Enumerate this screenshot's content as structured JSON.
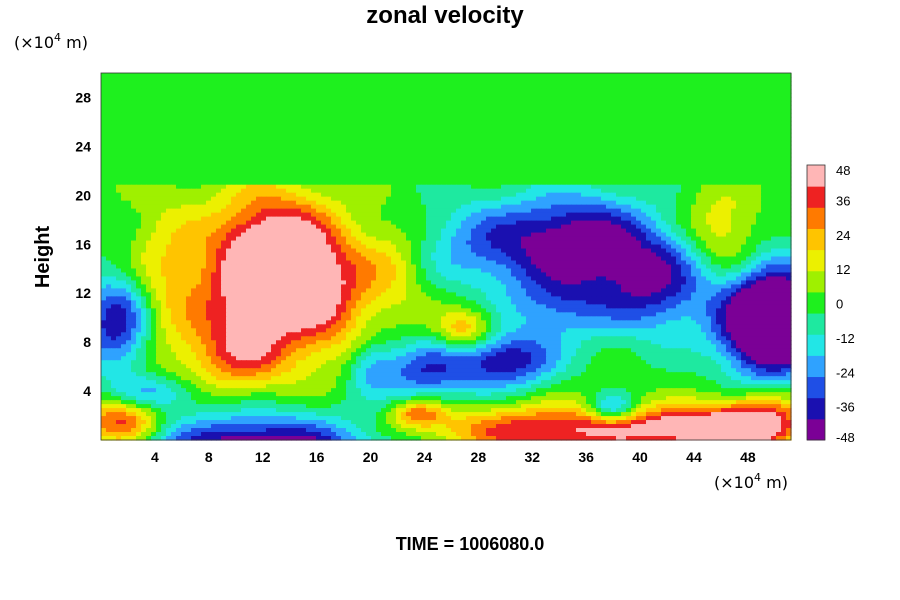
{
  "chart_data": {
    "type": "heatmap",
    "title": "zonal velocity",
    "ylabel": "Height",
    "x_unit_prefix": "(×10",
    "x_unit_exp": "4",
    "x_unit_suffix": " m)",
    "y_unit_prefix": "(×10",
    "y_unit_exp": "4",
    "y_unit_suffix": " m)",
    "x_ticks": [
      "4",
      "8",
      "12",
      "16",
      "20",
      "24",
      "28",
      "32",
      "36",
      "40",
      "44",
      "48"
    ],
    "y_ticks": [
      "4",
      "8",
      "12",
      "16",
      "20",
      "24",
      "28"
    ],
    "xlim": [
      0,
      51.2
    ],
    "ylim": [
      0,
      30
    ],
    "colorbar": {
      "ticks": [
        "48",
        "36",
        "24",
        "12",
        "0",
        "-12",
        "-24",
        "-36",
        "-48"
      ],
      "range": [
        -48,
        48
      ],
      "colors": [
        "#7b0096",
        "#1a10b0",
        "#1f4fe6",
        "#2fa2ff",
        "#22e6e6",
        "#1ee9a0",
        "#1ef01e",
        "#9ff000",
        "#ecf000",
        "#ffc400",
        "#ff7a00",
        "#ee2222",
        "#ffb6b6"
      ]
    },
    "field_blobs": [
      {
        "x": 12,
        "y": 13,
        "sx": 3.8,
        "sy": 4.6,
        "v": 48
      },
      {
        "x": 13.5,
        "y": 15,
        "sx": 2.5,
        "sy": 3.2,
        "v": 30
      },
      {
        "x": 10,
        "y": 7,
        "sx": 2.6,
        "sy": 2.2,
        "v": 22
      },
      {
        "x": 17,
        "y": 12,
        "sx": 2.0,
        "sy": 3.5,
        "v": 22
      },
      {
        "x": 4.5,
        "y": 13,
        "sx": 1.8,
        "sy": 5.0,
        "v": 14
      },
      {
        "x": 21.5,
        "y": 14,
        "sx": 2.0,
        "sy": 3.0,
        "v": 18
      },
      {
        "x": 1.2,
        "y": 9.5,
        "sx": 1.8,
        "sy": 2.8,
        "v": -40
      },
      {
        "x": 4,
        "y": 3.8,
        "sx": 2.2,
        "sy": 1.0,
        "v": -22
      },
      {
        "x": 12,
        "y": -1.5,
        "sx": 6.0,
        "sy": 2.4,
        "v": -60
      },
      {
        "x": 1.5,
        "y": 1.5,
        "sx": 2.0,
        "sy": 1.4,
        "v": 40
      },
      {
        "x": 30,
        "y": 16,
        "sx": 4.5,
        "sy": 2.6,
        "v": -30
      },
      {
        "x": 36,
        "y": 16.5,
        "sx": 3.2,
        "sy": 2.6,
        "v": -34
      },
      {
        "x": 41,
        "y": 13,
        "sx": 3.0,
        "sy": 3.0,
        "v": -40
      },
      {
        "x": 49,
        "y": 9.5,
        "sx": 2.4,
        "sy": 2.8,
        "v": -58
      },
      {
        "x": 50.5,
        "y": 10,
        "sx": 2.0,
        "sy": 3.5,
        "v": -30
      },
      {
        "x": 46,
        "y": 17,
        "sx": 2.0,
        "sy": 2.5,
        "v": 20
      },
      {
        "x": 34,
        "y": 11,
        "sx": 2.6,
        "sy": 2.0,
        "v": -24
      },
      {
        "x": 30,
        "y": 6.5,
        "sx": 2.6,
        "sy": 1.6,
        "v": -40
      },
      {
        "x": 24,
        "y": 5.5,
        "sx": 2.4,
        "sy": 1.8,
        "v": -30
      },
      {
        "x": 27,
        "y": 9,
        "sx": 1.5,
        "sy": 1.2,
        "v": 28
      },
      {
        "x": 23.5,
        "y": 2.2,
        "sx": 1.4,
        "sy": 0.8,
        "v": 30
      },
      {
        "x": 34,
        "y": 0.8,
        "sx": 7.0,
        "sy": 1.4,
        "v": 42
      },
      {
        "x": 44,
        "y": 1.0,
        "sx": 3.2,
        "sy": 1.2,
        "v": 36
      },
      {
        "x": 49,
        "y": 1.4,
        "sx": 2.4,
        "sy": 1.6,
        "v": 46
      },
      {
        "x": 38,
        "y": 2.5,
        "sx": 1.2,
        "sy": 0.8,
        "v": -30
      },
      {
        "x": 20,
        "y": 6,
        "sx": 1.2,
        "sy": 1.5,
        "v": -18
      }
    ]
  },
  "footer": {
    "time_text": "TIME = 1006080.0"
  }
}
